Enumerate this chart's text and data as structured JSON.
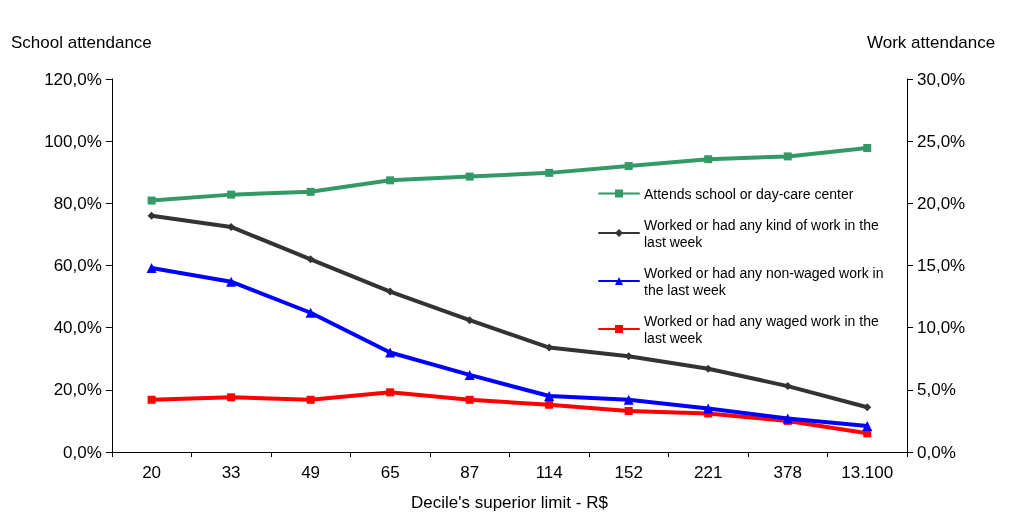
{
  "chart_data": {
    "type": "line",
    "xlabel": "Decile's superior limit - R$",
    "ylabel": "School attendance",
    "y2label": "Work attendance",
    "categories": [
      "20",
      "33",
      "49",
      "65",
      "87",
      "114",
      "152",
      "221",
      "378",
      "13.100"
    ],
    "series": [
      {
        "name": "Attends school or day-care center",
        "color": "#339966",
        "marker": "square",
        "values": [
          80.9,
          82.8,
          83.7,
          87.4,
          88.6,
          89.8,
          92.0,
          94.2,
          95.1,
          97.8
        ]
      },
      {
        "name": "Worked or had any kind of work in the last week",
        "color": "#333333",
        "marker": "diamond",
        "axis": "y2",
        "values": [
          19.0,
          18.1,
          15.5,
          12.9,
          10.6,
          8.4,
          7.7,
          6.7,
          5.3,
          3.6
        ]
      },
      {
        "name": "Worked or had any non-waged work in the last week",
        "color": "#0000ff",
        "marker": "triangle",
        "axis": "y2",
        "values": [
          14.8,
          13.7,
          11.2,
          8.0,
          6.2,
          4.5,
          4.2,
          3.5,
          2.7,
          2.1
        ]
      },
      {
        "name": "Worked or had any waged work in the last week",
        "color": "#ff0000",
        "marker": "square",
        "axis": "y2",
        "values": [
          4.2,
          4.4,
          4.2,
          4.8,
          4.2,
          3.8,
          3.3,
          3.1,
          2.5,
          1.5
        ]
      }
    ],
    "ylim": [
      0,
      120
    ],
    "yticks": [
      {
        "value": 0,
        "label": "0,0%"
      },
      {
        "value": 20,
        "label": "20,0%"
      },
      {
        "value": 40,
        "label": "40,0%"
      },
      {
        "value": 60,
        "label": "60,0%"
      },
      {
        "value": 80,
        "label": "80,0%"
      },
      {
        "value": 100,
        "label": "100,0%"
      },
      {
        "value": 120,
        "label": "120,0%"
      }
    ],
    "y2lim": [
      0,
      30
    ],
    "y2ticks": [
      {
        "value": 0,
        "label": "0,0%"
      },
      {
        "value": 5,
        "label": "5,0%"
      },
      {
        "value": 10,
        "label": "10,0%"
      },
      {
        "value": 15,
        "label": "15,0%"
      },
      {
        "value": 20,
        "label": "20,0%"
      },
      {
        "value": 25,
        "label": "25,0%"
      },
      {
        "value": 30,
        "label": "30,0%"
      }
    ],
    "grid": false,
    "legend": "right",
    "line_style": "solid"
  }
}
